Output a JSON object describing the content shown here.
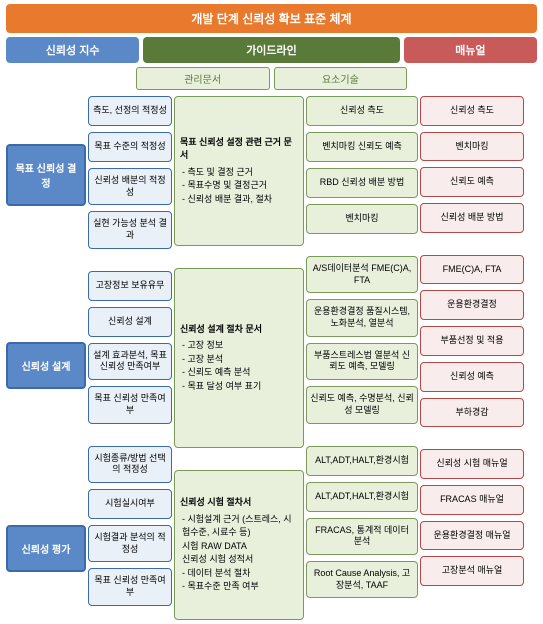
{
  "colors": {
    "orange": "#e8792d",
    "blue": "#5b89c7",
    "blue_border": "#3a6ba8",
    "green_dark": "#5a7a3a",
    "green_border": "#7a9a5a",
    "green_light_bg": "#e8f0dc",
    "red": "#c85a5a",
    "red_border": "#b84848",
    "blue_light_bg": "#eaf0f8",
    "red_light_bg": "#f8ecec",
    "white": "#ffffff"
  },
  "header": {
    "main": "개발 단계 신뢰성 확보 표준 체계",
    "col1": "신뢰성 지수",
    "col2": "가이드라인",
    "col3": "매뉴얼",
    "sub1": "관리문서",
    "sub2": "요소기술"
  },
  "mains": [
    "목표 신뢰성 결정",
    "신뢰성 설계",
    "신뢰성 평가"
  ],
  "col2_groups": [
    [
      "측도, 선정의 적정성",
      "목표 수준의 적정성",
      "신뢰성 배분의 적정성",
      "실현 가능성 분석 결과"
    ],
    [
      "고장정보 보유유무",
      "신뢰성 설계",
      "설계 효과분석, 목표신뢰성 만족여부",
      "목표 신뢰성 만족여부"
    ],
    [
      "시험종류/방법 선택의 적정성",
      "시험실시여부",
      "시험결과 분석의 적정성",
      "목표 신뢰성 만족여부"
    ]
  ],
  "col3_boxes": [
    {
      "title": "목표 신뢰성 설정 관련 근거 문서",
      "items": [
        "- 측도 및 결정 근거",
        "- 목표수명 및 결정근거",
        "- 신뢰성 배분 결과, 절차"
      ]
    },
    {
      "title": "신뢰성 설계 절차 문서",
      "items": [
        "- 고장 정보",
        "- 고장 분석",
        "- 신뢰도 예측 분석",
        "- 목표 달성 여부 표기"
      ]
    },
    {
      "title": "신뢰성 시험 절차서",
      "items": [
        "- 시험설계 근거 (스트레스, 시험수준, 시료수 등)",
        "시험 RAW DATA",
        "신뢰성 시험 성적서",
        "- 데이터 분석 절차",
        "- 목표수준 만족 여부"
      ]
    }
  ],
  "col4_groups": [
    [
      "신뢰성 측도",
      "벤치마킹 신뢰도 예측",
      "RBD 신뢰성 배분 방법",
      "벤치마킹"
    ],
    [
      "A/S데이터분석 FME(C)A, FTA",
      "운용환경결정 품질시스템, 노화분석, 열분석",
      "부품스트레스법 열분석 신뢰도 예측, 모델링",
      "신뢰도 예측, 수명분석, 신뢰성 모델링"
    ],
    [
      "ALT,ADT,HALT,환경시험",
      "ALT,ADT,HALT,환경시험",
      "FRACAS, 통계적 데이터 분석",
      "Root Cause Analysis, 고장분석, TAAF"
    ]
  ],
  "col5_groups": [
    [
      "신뢰성 측도",
      "벤치마킹",
      "신뢰도 예측",
      "신뢰성 배분 방법"
    ],
    [
      "FME(C)A, FTA",
      "운용환경결정",
      "부품선정 및 적용",
      "신뢰성 예측",
      "부하경감"
    ],
    [
      "신뢰성 시험 매뉴얼",
      "FRACAS 매뉴얼",
      "운용환경결정 매뉴얼",
      "고장분석 매뉴얼"
    ]
  ]
}
